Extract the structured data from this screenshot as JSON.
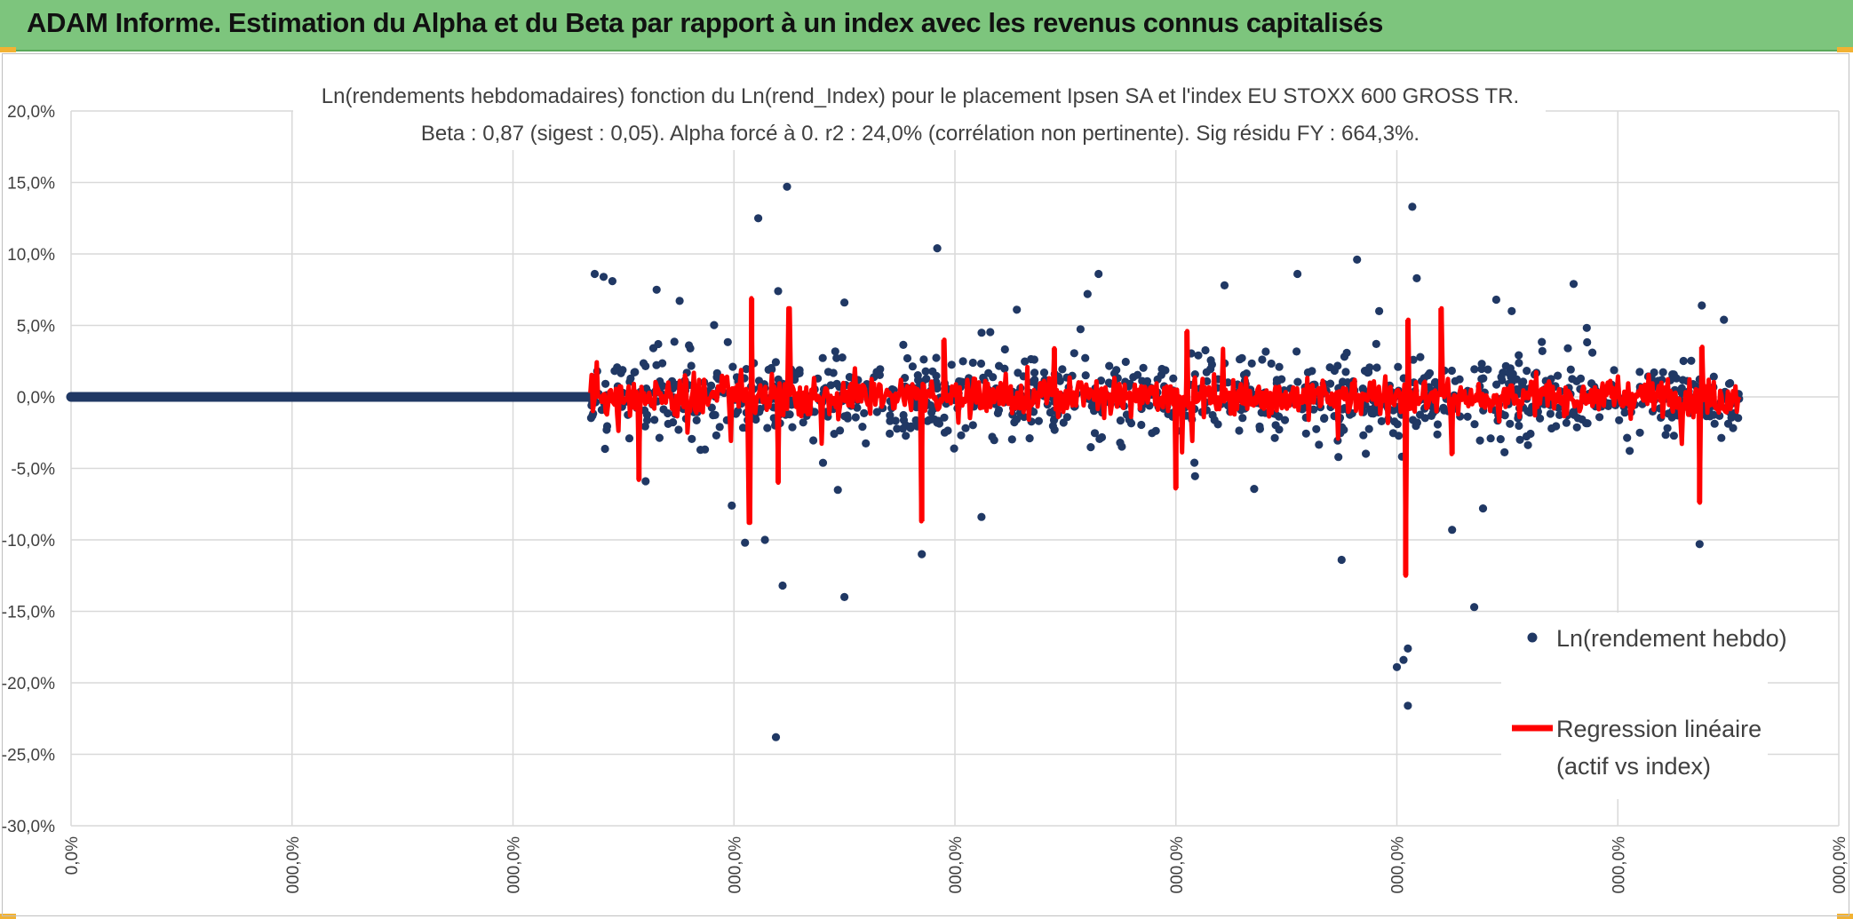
{
  "header": {
    "title": "ADAM Informe. Estimation du Alpha et du Beta par rapport à un index avec les revenus connus capitalisés"
  },
  "colors": {
    "header_bg": "#7dc57d",
    "points": "#203864",
    "regression": "#ff0000",
    "grid": "#d9d9d9",
    "text": "#404040"
  },
  "chart_data": {
    "type": "scatter",
    "title_lines": [
      "Ln(rendements hebdomadaires) fonction du Ln(rend_Index) pour le placement Ipsen SA et l'index EU STOXX 600 GROSS TR.",
      "Beta : 0,87 (sigest : 0,05). Alpha forcé à 0. r2 : 24,0% (corrélation non pertinente). Sig résidu FY : 664,3%."
    ],
    "y_ticks": [
      "20,0%",
      "15,0%",
      "10,0%",
      "5,0%",
      "0,0%",
      "-5,0%",
      "-10,0%",
      "-15,0%",
      "-20,0%",
      "-25,0%",
      "-30,0%"
    ],
    "ylim": [
      -30,
      20
    ],
    "x_ticks": [
      "0,0%",
      "000,0%",
      "000,0%",
      "000,0%",
      "000,0%",
      "000,0%",
      "000,0%",
      "000,0%",
      "000,0%"
    ],
    "xlim": [
      0,
      8
    ],
    "zero_run": {
      "x_start": 0,
      "x_end": 2.35,
      "y": 0
    },
    "data_x_range": [
      2.35,
      7.55
    ],
    "series": [
      {
        "name": "Ln(rendement hebdo)",
        "kind": "points",
        "count": 1040,
        "sample": [
          [
            2.37,
            8.6
          ],
          [
            2.41,
            8.4
          ],
          [
            2.45,
            8.1
          ],
          [
            2.65,
            7.5
          ],
          [
            2.6,
            -5.9
          ],
          [
            3.05,
            -10.2
          ],
          [
            3.11,
            12.5
          ],
          [
            3.2,
            7.4
          ],
          [
            3.14,
            -10.0
          ],
          [
            3.22,
            -13.2
          ],
          [
            3.19,
            -23.8
          ],
          [
            3.24,
            14.7
          ],
          [
            3.5,
            6.6
          ],
          [
            3.5,
            -14.0
          ],
          [
            3.47,
            -6.5
          ],
          [
            3.85,
            -11.0
          ],
          [
            3.92,
            10.4
          ],
          [
            4.12,
            -8.4
          ],
          [
            4.28,
            6.1
          ],
          [
            4.6,
            7.2
          ],
          [
            4.65,
            8.6
          ],
          [
            5.22,
            7.8
          ],
          [
            5.55,
            8.6
          ],
          [
            5.82,
            9.6
          ],
          [
            5.92,
            6.0
          ],
          [
            6.0,
            -18.9
          ],
          [
            6.03,
            -18.4
          ],
          [
            6.05,
            -17.6
          ],
          [
            6.05,
            -21.6
          ],
          [
            6.07,
            13.3
          ],
          [
            6.09,
            8.3
          ],
          [
            6.35,
            -14.7
          ],
          [
            6.39,
            -7.8
          ],
          [
            6.45,
            6.8
          ],
          [
            6.52,
            6.0
          ],
          [
            6.8,
            7.9
          ],
          [
            7.37,
            -10.3
          ],
          [
            7.38,
            6.4
          ],
          [
            7.48,
            5.4
          ],
          [
            5.75,
            -11.4
          ],
          [
            6.25,
            -9.3
          ],
          [
            2.99,
            -7.6
          ]
        ]
      },
      {
        "name": "Regression linéaire (actif vs index)",
        "kind": "line",
        "spikes": [
          [
            3.08,
            6.9
          ],
          [
            3.07,
            -8.8
          ],
          [
            3.25,
            6.2
          ],
          [
            3.2,
            -6.0
          ],
          [
            3.85,
            -8.7
          ],
          [
            3.95,
            4.0
          ],
          [
            5.0,
            -6.4
          ],
          [
            5.05,
            4.6
          ],
          [
            6.04,
            -12.5
          ],
          [
            6.05,
            5.4
          ],
          [
            6.2,
            6.2
          ],
          [
            6.25,
            -4.0
          ],
          [
            7.37,
            -7.4
          ],
          [
            7.38,
            3.5
          ],
          [
            2.57,
            -5.8
          ],
          [
            4.45,
            3.4
          ]
        ]
      }
    ],
    "legend": {
      "position": "right",
      "entries": [
        "Ln(rendement hebdo)",
        "Regression linéaire",
        "(actif vs index)"
      ]
    }
  }
}
